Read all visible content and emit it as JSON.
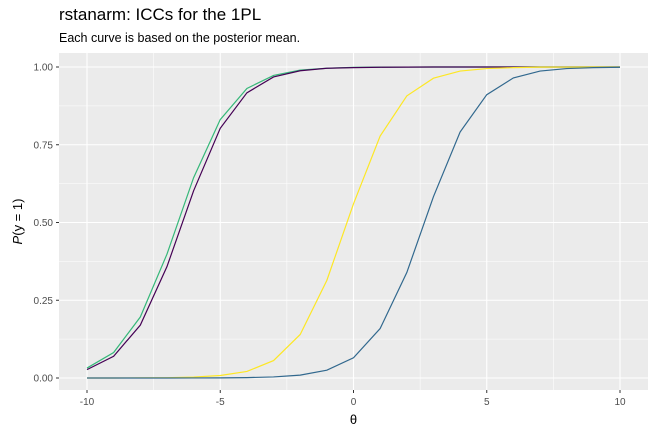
{
  "chart_data": {
    "type": "line",
    "title": "rstanarm: ICCs for the 1PL",
    "subtitle": "Each curve is based on the posterior mean.",
    "xlabel": "θ",
    "ylabel": "P(y = 1)",
    "xlim": [
      -10,
      10
    ],
    "ylim": [
      0,
      1
    ],
    "x_ticks": [
      -10,
      -5,
      0,
      5,
      10
    ],
    "y_ticks": [
      0,
      0.25,
      0.5,
      0.75,
      1
    ],
    "x_tick_labels": [
      "-10",
      "-5",
      "0",
      "5",
      "10"
    ],
    "y_tick_labels": [
      "0.00",
      "0.25",
      "0.50",
      "0.75",
      "1.00"
    ],
    "grid": true,
    "legend": "none",
    "x": [
      -10,
      -9,
      -8,
      -7,
      -6,
      -5,
      -4,
      -3,
      -2,
      -1,
      0,
      1,
      2,
      3,
      4,
      5,
      6,
      7,
      8,
      9,
      10
    ],
    "series": [
      {
        "color": "#35b779",
        "values": [
          0.032,
          0.082,
          0.196,
          0.398,
          0.644,
          0.831,
          0.931,
          0.973,
          0.99,
          0.996,
          0.999,
          0.9995,
          0.9998,
          0.9999,
          1.0,
          1.0,
          1.0,
          1.0,
          1.0,
          1.0,
          1.0
        ]
      },
      {
        "color": "#440154",
        "values": [
          0.027,
          0.07,
          0.17,
          0.358,
          0.602,
          0.803,
          0.917,
          0.968,
          0.988,
          0.996,
          0.998,
          0.9993,
          0.9997,
          0.9999,
          1.0,
          1.0,
          1.0,
          1.0,
          1.0,
          1.0,
          1.0
        ]
      },
      {
        "color": "#fde725",
        "values": [
          0.0,
          0.0001,
          0.0003,
          0.001,
          0.003,
          0.008,
          0.021,
          0.056,
          0.14,
          0.314,
          0.56,
          0.778,
          0.907,
          0.964,
          0.987,
          0.995,
          0.998,
          0.9995,
          0.9998,
          0.9999,
          1.0
        ]
      },
      {
        "color": "#31688e",
        "values": [
          0.0,
          0.0,
          0.0,
          0.0001,
          0.0002,
          0.0005,
          0.0013,
          0.0034,
          0.0093,
          0.025,
          0.065,
          0.159,
          0.339,
          0.583,
          0.791,
          0.911,
          0.965,
          0.987,
          0.995,
          0.998,
          0.9993
        ]
      }
    ]
  }
}
